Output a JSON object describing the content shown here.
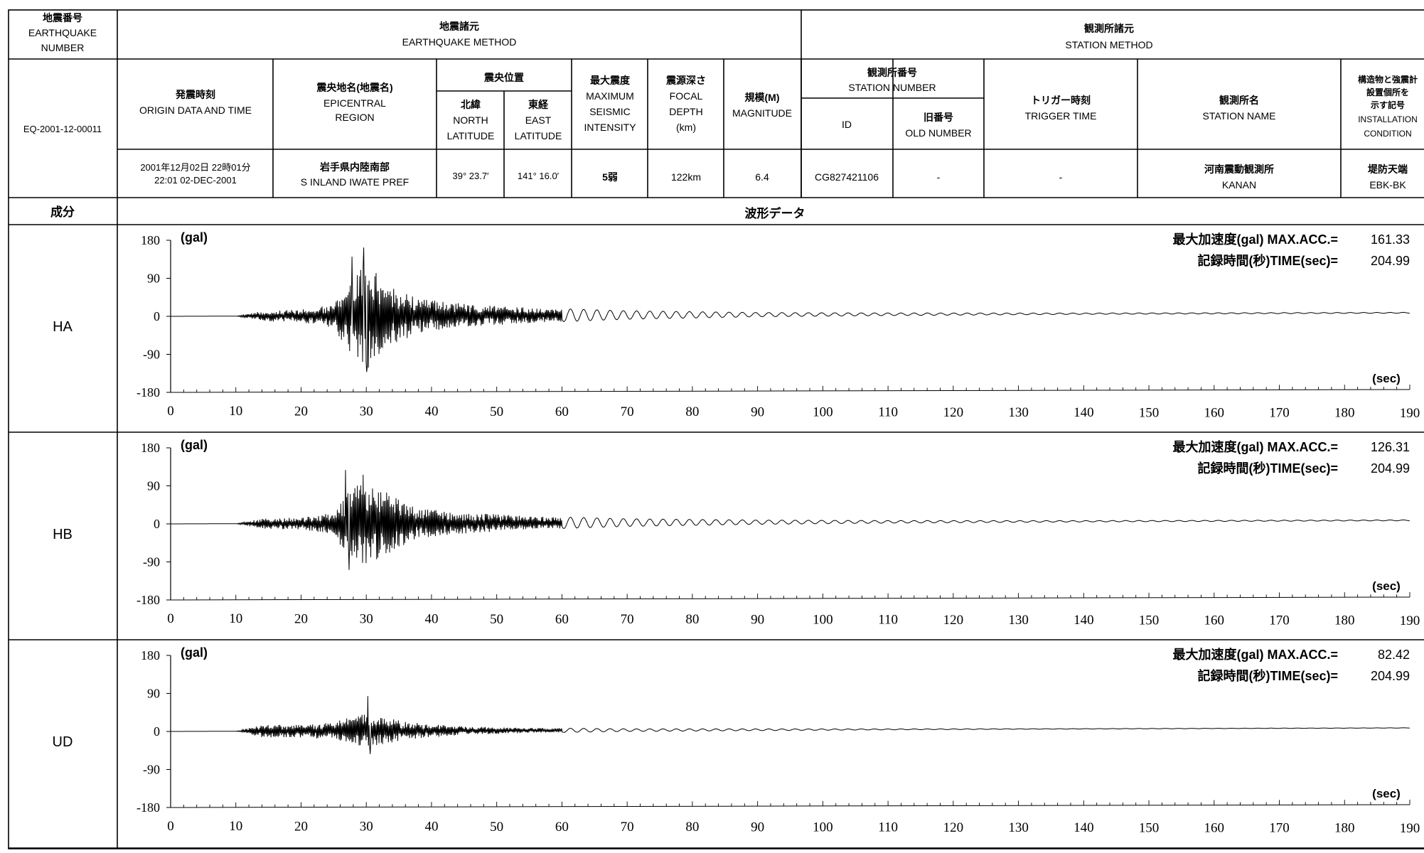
{
  "header": {
    "eq_number_jp": "地震番号",
    "eq_number_en1": "EARTHQUAKE",
    "eq_number_en2": "NUMBER",
    "eq_method_jp": "地震諸元",
    "eq_method_en": "EARTHQUAKE METHOD",
    "station_method_jp": "観測所諸元",
    "station_method_en": "STATION METHOD",
    "origin_jp": "発震時刻",
    "origin_en": "ORIGIN DATA AND TIME",
    "region_jp": "震央地名(地震名)",
    "region_en1": "EPICENTRAL",
    "region_en2": "REGION",
    "epicenter_jp": "震央位置",
    "north_jp": "北緯",
    "north_en1": "NORTH",
    "north_en2": "LATITUDE",
    "east_jp": "東経",
    "east_en1": "EAST",
    "east_en2": "LATITUDE",
    "intensity_jp": "最大震度",
    "intensity_en1": "MAXIMUM",
    "intensity_en2": "SEISMIC",
    "intensity_en3": "INTENSITY",
    "depth_jp": "震源深さ",
    "depth_en1": "FOCAL",
    "depth_en2": "DEPTH",
    "depth_en3": "(km)",
    "magnitude_jp": "規模(M)",
    "magnitude_en": "MAGNITUDE",
    "station_number_jp": "観測所番号",
    "station_number_en": "STATION NUMBER",
    "id_label": "ID",
    "old_number_jp": "旧番号",
    "old_number_en": "OLD NUMBER",
    "trigger_jp": "トリガー時刻",
    "trigger_en": "TRIGGER TIME",
    "station_name_jp": "観測所名",
    "station_name_en": "STATION NAME",
    "install_jp1": "構造物と強震計",
    "install_jp2": "設置個所を",
    "install_jp3": "示す記号",
    "install_en1": "INSTALLATION",
    "install_en2": "CONDITION"
  },
  "record": {
    "eq_number": "EQ-2001-12-00011",
    "origin_jp": "2001年12月02日 22時01分",
    "origin_en": "22:01 02-DEC-2001",
    "region_jp": "岩手県内陸南部",
    "region_en": "S INLAND IWATE PREF",
    "latitude": "39° 23.7′",
    "longitude": "141° 16.0′",
    "intensity": "5弱",
    "depth": "122km",
    "magnitude": "6.4",
    "station_id": "CG827421106",
    "old_number": "-",
    "trigger_time": "-",
    "station_name_jp": "河南震動観測所",
    "station_name_en": "KANAN",
    "install_jp": "堤防天端",
    "install_code": "EBK-BK"
  },
  "section": {
    "component_label": "成分",
    "waveform_label": "波形データ",
    "max_acc_label": "最大加速度(gal) MAX.ACC.=",
    "rec_time_label": "記録時間(秒)TIME(sec)="
  },
  "chart_data": [
    {
      "type": "line",
      "component": "HA",
      "y_unit": "(gal)",
      "x_unit": "(sec)",
      "ylim": [
        -180,
        180
      ],
      "xlim": [
        0,
        190
      ],
      "y_ticks": [
        "180",
        "90",
        "0",
        "-90",
        "-180"
      ],
      "x_ticks": [
        "0",
        "10",
        "20",
        "30",
        "40",
        "50",
        "60",
        "70",
        "80",
        "90",
        "100",
        "110",
        "120",
        "130",
        "140",
        "150",
        "160",
        "170",
        "180",
        "190"
      ],
      "max_acc": "161.33",
      "rec_time": "204.99",
      "envelope": {
        "x": [
          0,
          10,
          14,
          20,
          25,
          27,
          30,
          33,
          38,
          45,
          55,
          70,
          90,
          110,
          140,
          190
        ],
        "y": [
          0,
          0,
          12,
          15,
          28,
          80,
          130,
          80,
          40,
          28,
          18,
          10,
          5,
          3,
          1.5,
          1
        ]
      },
      "peaks": [
        {
          "x": 29.6,
          "y": 161.33
        },
        {
          "x": 30.1,
          "y": -133
        },
        {
          "x": 27.8,
          "y": 140
        }
      ]
    },
    {
      "type": "line",
      "component": "HB",
      "y_unit": "(gal)",
      "x_unit": "(sec)",
      "ylim": [
        -180,
        180
      ],
      "xlim": [
        0,
        190
      ],
      "y_ticks": [
        "180",
        "90",
        "0",
        "-90",
        "-180"
      ],
      "x_ticks": [
        "0",
        "10",
        "20",
        "30",
        "40",
        "50",
        "60",
        "70",
        "80",
        "90",
        "100",
        "110",
        "120",
        "130",
        "140",
        "150",
        "160",
        "170",
        "180",
        "190"
      ],
      "max_acc": "126.31",
      "rec_time": "204.99",
      "envelope": {
        "x": [
          0,
          10,
          14,
          20,
          25,
          27,
          30,
          33,
          38,
          45,
          55,
          70,
          90,
          110,
          140,
          190
        ],
        "y": [
          0,
          0,
          12,
          14,
          25,
          75,
          105,
          75,
          35,
          25,
          16,
          9,
          5,
          3,
          1.5,
          1
        ]
      },
      "peaks": [
        {
          "x": 26.8,
          "y": 126.31
        },
        {
          "x": 27.4,
          "y": -110
        },
        {
          "x": 29.5,
          "y": 115
        }
      ]
    },
    {
      "type": "line",
      "component": "UD",
      "y_unit": "(gal)",
      "x_unit": "(sec)",
      "ylim": [
        -180,
        180
      ],
      "xlim": [
        0,
        190
      ],
      "y_ticks": [
        "180",
        "90",
        "0",
        "-90",
        "-180"
      ],
      "x_ticks": [
        "0",
        "10",
        "20",
        "30",
        "40",
        "50",
        "60",
        "70",
        "80",
        "90",
        "100",
        "110",
        "120",
        "130",
        "140",
        "150",
        "160",
        "170",
        "180",
        "190"
      ],
      "max_acc": "82.42",
      "rec_time": "204.99",
      "envelope": {
        "x": [
          0,
          10,
          14,
          20,
          25,
          28,
          30,
          33,
          38,
          45,
          55,
          70,
          90,
          110,
          140,
          190
        ],
        "y": [
          0,
          0,
          15,
          15,
          20,
          35,
          40,
          30,
          18,
          10,
          6,
          3,
          2,
          1,
          0.5,
          0.3
        ]
      },
      "peaks": [
        {
          "x": 30.2,
          "y": 82.42
        },
        {
          "x": 30.6,
          "y": -55
        }
      ]
    }
  ]
}
